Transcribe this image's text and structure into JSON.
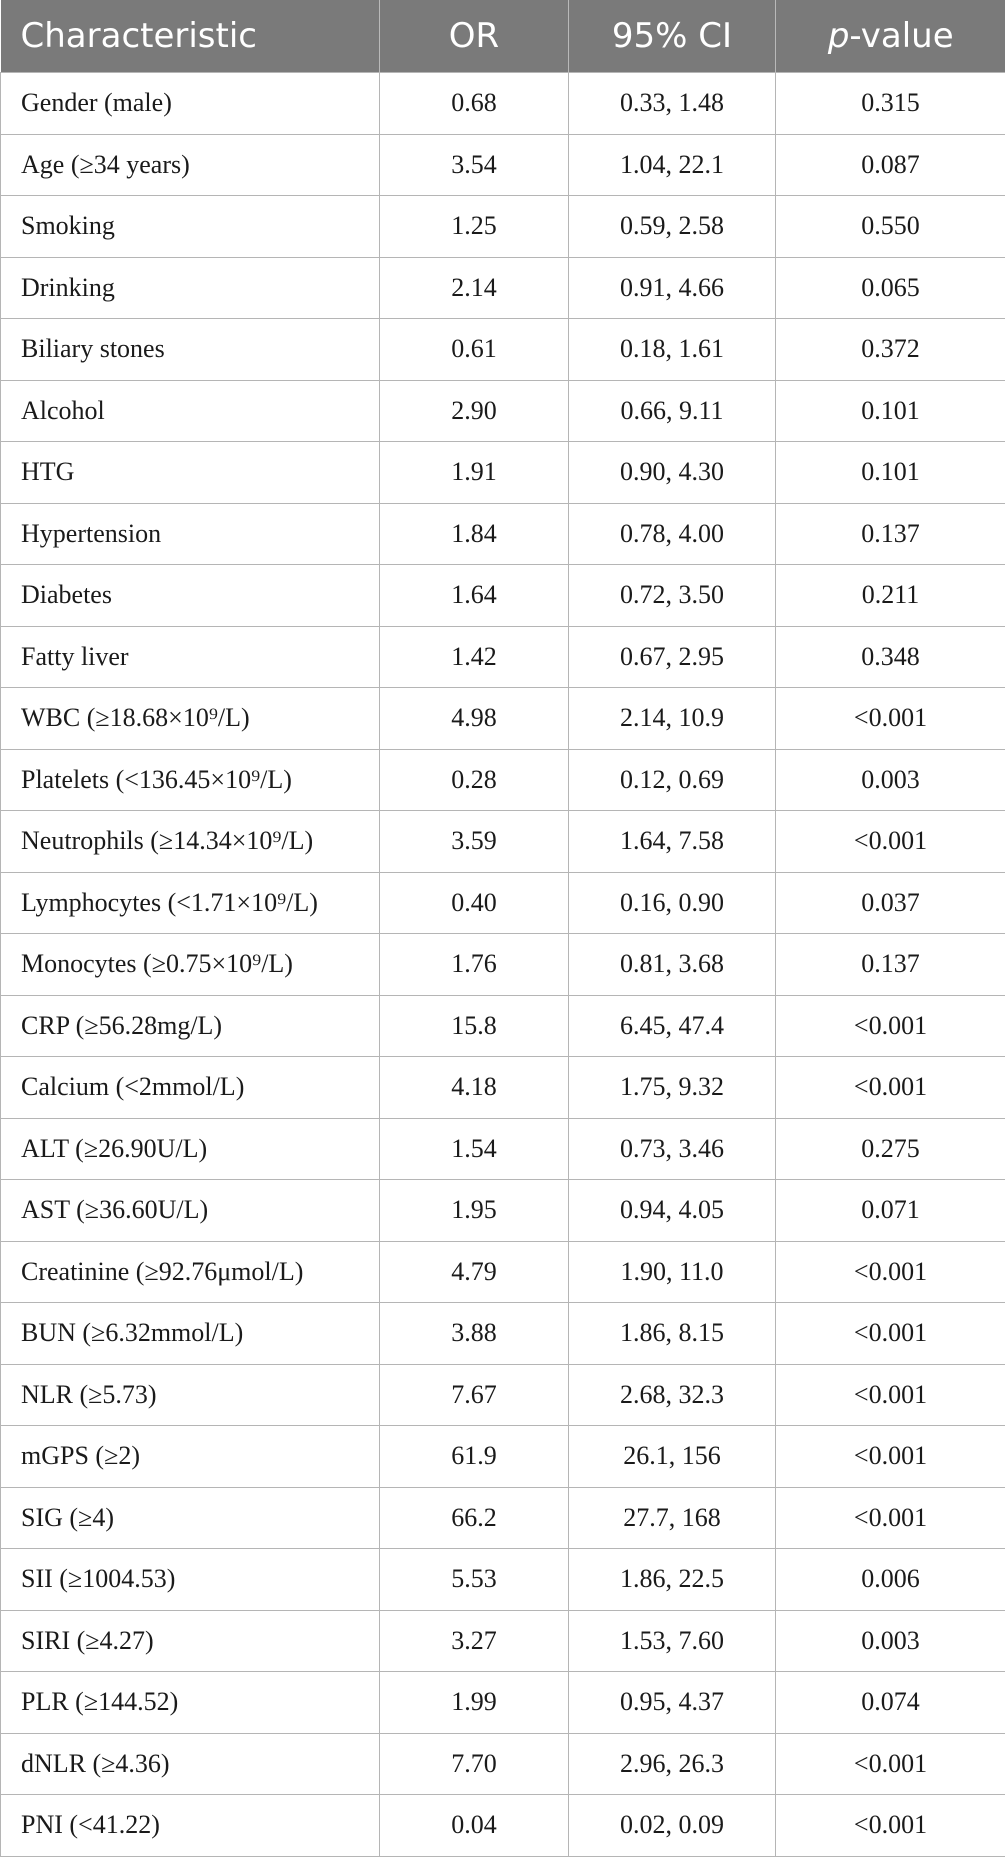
{
  "table": {
    "headers": {
      "characteristic": "Characteristic",
      "or": "OR",
      "ci": "95% CI",
      "p_prefix": "p",
      "p_suffix": "-value"
    },
    "rows": [
      {
        "characteristic": "Gender (male)",
        "or": "0.68",
        "ci": "0.33, 1.48",
        "p": "0.315"
      },
      {
        "characteristic": "Age (≥34 years)",
        "or": "3.54",
        "ci": "1.04, 22.1",
        "p": "0.087"
      },
      {
        "characteristic": "Smoking",
        "or": "1.25",
        "ci": "0.59, 2.58",
        "p": "0.550"
      },
      {
        "characteristic": "Drinking",
        "or": "2.14",
        "ci": "0.91, 4.66",
        "p": "0.065"
      },
      {
        "characteristic": "Biliary stones",
        "or": "0.61",
        "ci": "0.18, 1.61",
        "p": "0.372"
      },
      {
        "characteristic": "Alcohol",
        "or": "2.90",
        "ci": "0.66, 9.11",
        "p": "0.101"
      },
      {
        "characteristic": "HTG",
        "or": "1.91",
        "ci": "0.90, 4.30",
        "p": "0.101"
      },
      {
        "characteristic": "Hypertension",
        "or": "1.84",
        "ci": "0.78, 4.00",
        "p": "0.137"
      },
      {
        "characteristic": "Diabetes",
        "or": "1.64",
        "ci": "0.72, 3.50",
        "p": "0.211"
      },
      {
        "characteristic": "Fatty liver",
        "or": "1.42",
        "ci": "0.67, 2.95",
        "p": "0.348"
      },
      {
        "characteristic": "WBC (≥18.68×10⁹/L)",
        "or": "4.98",
        "ci": "2.14, 10.9",
        "p": "<0.001"
      },
      {
        "characteristic": "Platelets (<136.45×10⁹/L)",
        "or": "0.28",
        "ci": "0.12, 0.69",
        "p": "0.003"
      },
      {
        "characteristic": "Neutrophils (≥14.34×10⁹/L)",
        "or": "3.59",
        "ci": "1.64, 7.58",
        "p": "<0.001"
      },
      {
        "characteristic": "Lymphocytes (<1.71×10⁹/L)",
        "or": "0.40",
        "ci": "0.16, 0.90",
        "p": "0.037"
      },
      {
        "characteristic": "Monocytes (≥0.75×10⁹/L)",
        "or": "1.76",
        "ci": "0.81, 3.68",
        "p": "0.137"
      },
      {
        "characteristic": "CRP (≥56.28mg/L)",
        "or": "15.8",
        "ci": "6.45, 47.4",
        "p": "<0.001"
      },
      {
        "characteristic": "Calcium (<2mmol/L)",
        "or": "4.18",
        "ci": "1.75, 9.32",
        "p": "<0.001"
      },
      {
        "characteristic": "ALT (≥26.90U/L)",
        "or": "1.54",
        "ci": "0.73, 3.46",
        "p": "0.275"
      },
      {
        "characteristic": "AST (≥36.60U/L)",
        "or": "1.95",
        "ci": "0.94, 4.05",
        "p": "0.071"
      },
      {
        "characteristic": "Creatinine (≥92.76μmol/L)",
        "or": "4.79",
        "ci": "1.90, 11.0",
        "p": "<0.001"
      },
      {
        "characteristic": "BUN (≥6.32mmol/L)",
        "or": "3.88",
        "ci": "1.86, 8.15",
        "p": "<0.001"
      },
      {
        "characteristic": "NLR (≥5.73)",
        "or": "7.67",
        "ci": "2.68, 32.3",
        "p": "<0.001"
      },
      {
        "characteristic": "mGPS (≥2)",
        "or": "61.9",
        "ci": "26.1, 156",
        "p": "<0.001"
      },
      {
        "characteristic": "SIG (≥4)",
        "or": "66.2",
        "ci": "27.7, 168",
        "p": "<0.001"
      },
      {
        "characteristic": "SII (≥1004.53)",
        "or": "5.53",
        "ci": "1.86, 22.5",
        "p": "0.006"
      },
      {
        "characteristic": "SIRI (≥4.27)",
        "or": "3.27",
        "ci": "1.53, 7.60",
        "p": "0.003"
      },
      {
        "characteristic": "PLR (≥144.52)",
        "or": "1.99",
        "ci": "0.95, 4.37",
        "p": "0.074"
      },
      {
        "characteristic": "dNLR (≥4.36)",
        "or": "7.70",
        "ci": "2.96, 26.3",
        "p": "<0.001"
      },
      {
        "characteristic": "PNI (<41.22)",
        "or": "0.04",
        "ci": "0.02, 0.09",
        "p": "<0.001"
      }
    ]
  },
  "colors": {
    "header_bg": "#7a7a7a",
    "header_text": "#ffffff",
    "grid_line": "#b5b5b5"
  }
}
